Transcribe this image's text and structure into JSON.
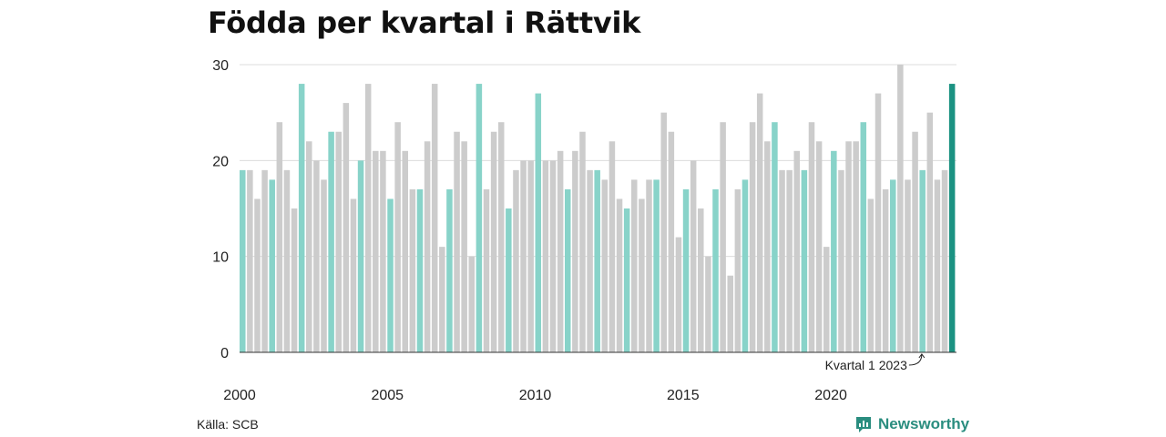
{
  "title": "Födda per kvartal i Rättvik",
  "source": "Källa: SCB",
  "brand": "Newsworthy",
  "colors": {
    "regular": "#cccccc",
    "q1": "#88d3c9",
    "latest": "#1b9282",
    "brand": "#2a8d7f"
  },
  "chart_data": {
    "type": "bar",
    "title": "Födda per kvartal i Rättvik",
    "xlabel": "",
    "ylabel": "",
    "ylim": [
      0,
      30
    ],
    "yticks": [
      0,
      10,
      20,
      30
    ],
    "xticks": [
      "2000",
      "2005",
      "2010",
      "2015",
      "2020"
    ],
    "start_year": 2000,
    "annotation": "Kvartal 1 2023",
    "grid": true,
    "values": [
      19,
      19,
      16,
      19,
      18,
      24,
      19,
      15,
      28,
      22,
      20,
      18,
      23,
      23,
      26,
      16,
      20,
      28,
      21,
      21,
      16,
      24,
      21,
      17,
      17,
      22,
      28,
      11,
      17,
      23,
      22,
      10,
      28,
      17,
      23,
      24,
      15,
      19,
      20,
      20,
      27,
      20,
      20,
      21,
      17,
      21,
      23,
      19,
      19,
      18,
      22,
      16,
      15,
      18,
      16,
      18,
      18,
      25,
      23,
      12,
      17,
      20,
      15,
      10,
      17,
      24,
      8,
      17,
      18,
      24,
      27,
      22,
      24,
      19,
      19,
      21,
      19,
      24,
      22,
      11,
      21,
      19,
      22,
      22,
      24,
      16,
      27,
      17,
      18,
      30,
      18,
      23,
      19,
      25,
      18,
      19,
      28
    ]
  }
}
